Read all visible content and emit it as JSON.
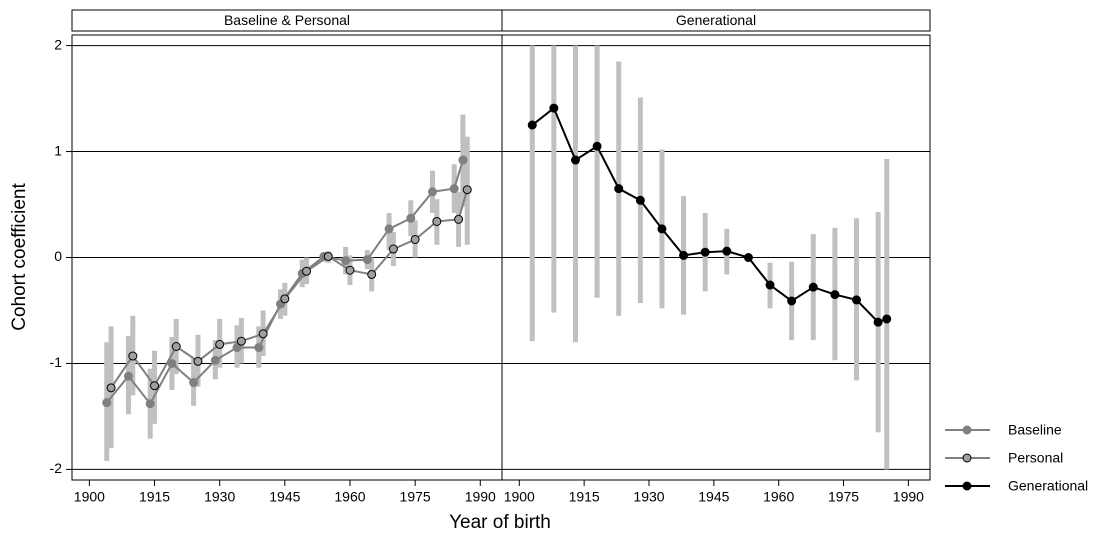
{
  "chart_data": [
    {
      "type": "line",
      "title": "Baseline & Personal",
      "xlim": [
        1896,
        1995
      ],
      "xticks": [
        1900,
        1915,
        1930,
        1945,
        1960,
        1975,
        1990
      ],
      "ylim": [
        -2.1,
        2.1
      ],
      "yticks": [
        -2,
        -1,
        0,
        1,
        2
      ],
      "grid": true,
      "ci_color": "#c0c0c0",
      "series": [
        {
          "name": "Baseline",
          "color": "#808080",
          "edgecolor": "#808080",
          "x": [
            1904,
            1909,
            1914,
            1919,
            1924,
            1929,
            1934,
            1939,
            1944,
            1949,
            1954,
            1959,
            1964,
            1969,
            1974,
            1979,
            1984,
            1986
          ],
          "values": [
            -1.37,
            -1.12,
            -1.38,
            -1.0,
            -1.18,
            -0.97,
            -0.85,
            -0.85,
            -0.44,
            -0.15,
            0.01,
            -0.03,
            -0.02,
            0.27,
            0.37,
            0.62,
            0.65,
            0.92
          ],
          "lower": [
            -1.92,
            -1.48,
            -1.71,
            -1.25,
            -1.4,
            -1.15,
            -1.04,
            -1.04,
            -0.58,
            -0.28,
            -0.04,
            -0.16,
            -0.11,
            0.07,
            0.2,
            0.42,
            0.42,
            0.48
          ],
          "upper": [
            -0.8,
            -0.74,
            -1.05,
            -0.75,
            -0.95,
            -0.78,
            -0.64,
            -0.65,
            -0.3,
            -0.02,
            0.05,
            0.1,
            0.07,
            0.42,
            0.54,
            0.82,
            0.88,
            1.35
          ]
        },
        {
          "name": "Personal",
          "color": "#808080",
          "edgecolor": "#000000",
          "marker_fill": "#a0a0a0",
          "x": [
            1905,
            1910,
            1915,
            1920,
            1925,
            1930,
            1935,
            1940,
            1945,
            1950,
            1955,
            1960,
            1965,
            1970,
            1975,
            1980,
            1985,
            1987
          ],
          "values": [
            -1.23,
            -0.93,
            -1.21,
            -0.84,
            -0.98,
            -0.82,
            -0.79,
            -0.72,
            -0.39,
            -0.13,
            0.01,
            -0.12,
            -0.16,
            0.08,
            0.17,
            0.34,
            0.36,
            0.64
          ],
          "lower": [
            -1.8,
            -1.3,
            -1.57,
            -1.1,
            -1.22,
            -1.04,
            -1.0,
            -0.93,
            -0.55,
            -0.25,
            -0.05,
            -0.26,
            -0.32,
            -0.08,
            0.0,
            0.12,
            0.1,
            0.12
          ],
          "upper": [
            -0.65,
            -0.55,
            -0.88,
            -0.58,
            -0.73,
            -0.58,
            -0.57,
            -0.5,
            -0.24,
            0.0,
            0.06,
            0.02,
            0.0,
            0.24,
            0.35,
            0.55,
            0.62,
            1.14
          ]
        }
      ]
    },
    {
      "type": "line",
      "title": "Generational",
      "xlim": [
        1896,
        1995
      ],
      "xticks": [
        1900,
        1915,
        1930,
        1945,
        1960,
        1975,
        1990
      ],
      "ylim": [
        -2.1,
        2.1
      ],
      "yticks": [
        -2,
        -1,
        0,
        1,
        2
      ],
      "grid": true,
      "ci_color": "#c0c0c0",
      "series": [
        {
          "name": "Generational",
          "color": "#000000",
          "edgecolor": "#000000",
          "x": [
            1903,
            1908,
            1913,
            1918,
            1923,
            1928,
            1933,
            1938,
            1943,
            1948,
            1953,
            1958,
            1963,
            1968,
            1973,
            1978,
            1983,
            1985
          ],
          "values": [
            1.25,
            1.41,
            0.92,
            1.05,
            0.65,
            0.54,
            0.27,
            0.02,
            0.05,
            0.06,
            0.0,
            -0.26,
            -0.41,
            -0.28,
            -0.35,
            -0.4,
            -0.61,
            -0.58
          ],
          "lower": [
            -0.79,
            -0.52,
            -0.8,
            -0.38,
            -0.55,
            -0.43,
            -0.48,
            -0.54,
            -0.32,
            -0.16,
            -0.02,
            -0.48,
            -0.78,
            -0.78,
            -0.97,
            -1.16,
            -1.65,
            -2.0
          ],
          "upper": [
            2.0,
            2.0,
            2.0,
            2.0,
            1.85,
            1.51,
            1.02,
            0.58,
            0.42,
            0.27,
            0.02,
            -0.05,
            -0.04,
            0.22,
            0.28,
            0.37,
            0.43,
            0.93
          ]
        }
      ]
    }
  ],
  "xlabel": "Year of birth",
  "ylabel": "Cohort coefficient",
  "legend": "right"
}
